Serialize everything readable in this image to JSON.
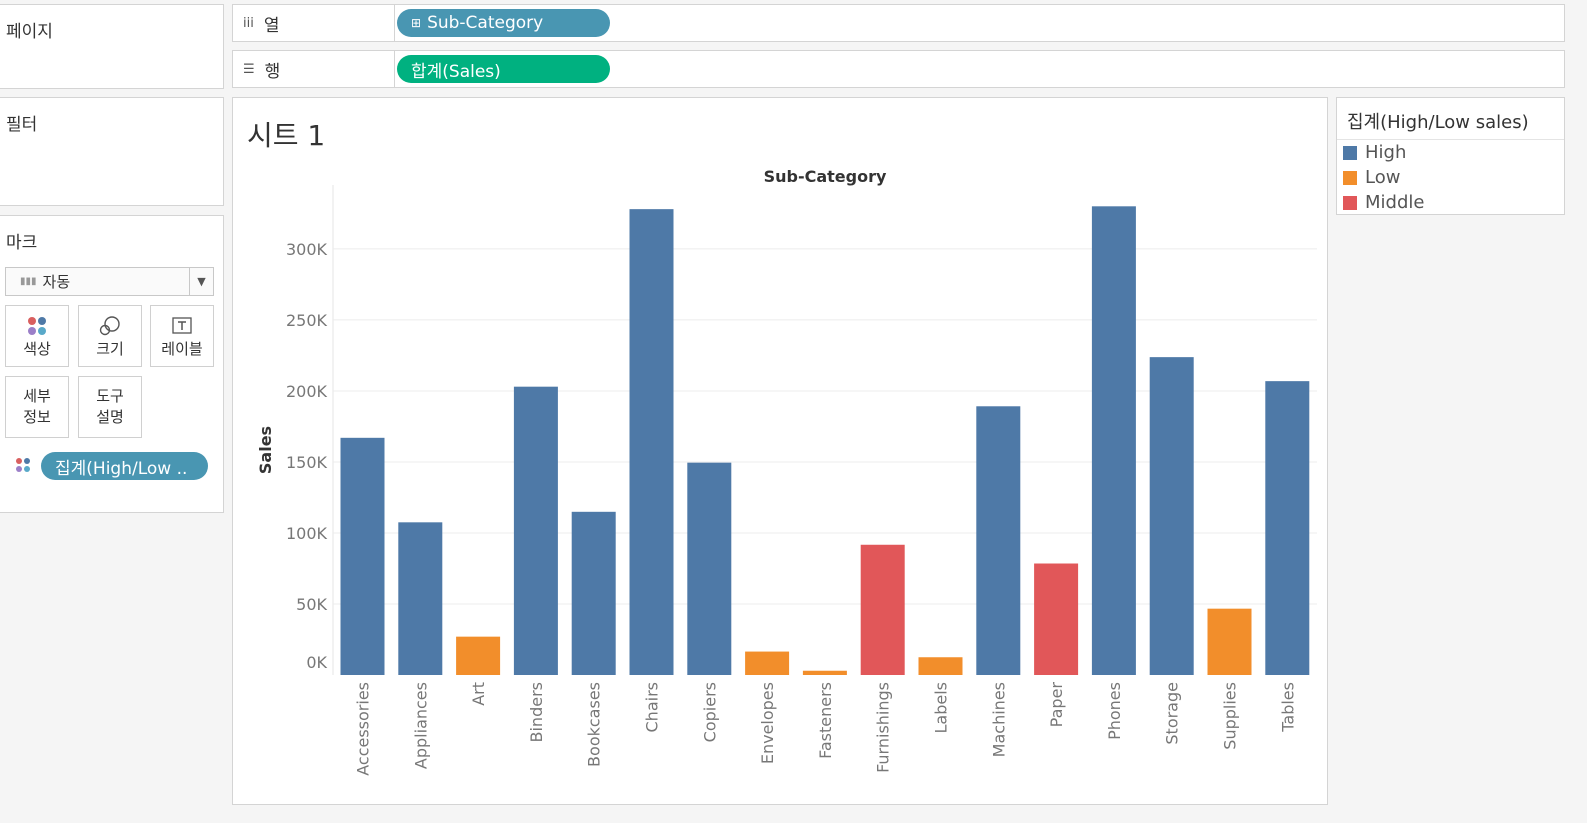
{
  "left": {
    "pages_title": "페이지",
    "filters_title": "필터",
    "marks_title": "마크",
    "mark_type": "자동",
    "buttons": [
      {
        "label": "색상"
      },
      {
        "label": "크기"
      },
      {
        "label": "레이블"
      },
      {
        "label": "세부\n정보"
      },
      {
        "label": "도구\n설명"
      }
    ],
    "color_pill": "집계(High/Low .."
  },
  "shelves": {
    "columns_label": "열",
    "columns_pill": "Sub-Category",
    "rows_label": "행",
    "rows_pill": "합계(Sales)"
  },
  "sheet": {
    "title": "시트 1"
  },
  "legend": {
    "title": "집계(High/Low sales)",
    "items": [
      {
        "label": "High",
        "color": "#4e79a7"
      },
      {
        "label": "Low",
        "color": "#f28e2b"
      },
      {
        "label": "Middle",
        "color": "#e15759"
      }
    ]
  },
  "chart_data": {
    "type": "bar",
    "title": "Sub-Category",
    "xlabel": "Sub-Category",
    "ylabel": "Sales",
    "ylim": [
      0,
      345000
    ],
    "yticks": [
      0,
      50000,
      100000,
      150000,
      200000,
      250000,
      300000
    ],
    "ytick_labels": [
      "0K",
      "50K",
      "100K",
      "150K",
      "200K",
      "250K",
      "300K"
    ],
    "categories": [
      "Accessories",
      "Appliances",
      "Art",
      "Binders",
      "Bookcases",
      "Chairs",
      "Copiers",
      "Envelopes",
      "Fasteners",
      "Furnishings",
      "Labels",
      "Machines",
      "Paper",
      "Phones",
      "Storage",
      "Supplies",
      "Tables"
    ],
    "values": [
      167000,
      107500,
      27000,
      203000,
      114900,
      328000,
      149500,
      16500,
      3000,
      91700,
      12500,
      189200,
      78500,
      330000,
      223800,
      46700,
      206900
    ],
    "groups": [
      "High",
      "High",
      "Low",
      "High",
      "High",
      "High",
      "High",
      "Low",
      "Low",
      "Middle",
      "Low",
      "High",
      "Middle",
      "High",
      "High",
      "Low",
      "High"
    ],
    "colors": {
      "High": "#4e79a7",
      "Low": "#f28e2b",
      "Middle": "#e15759"
    }
  }
}
